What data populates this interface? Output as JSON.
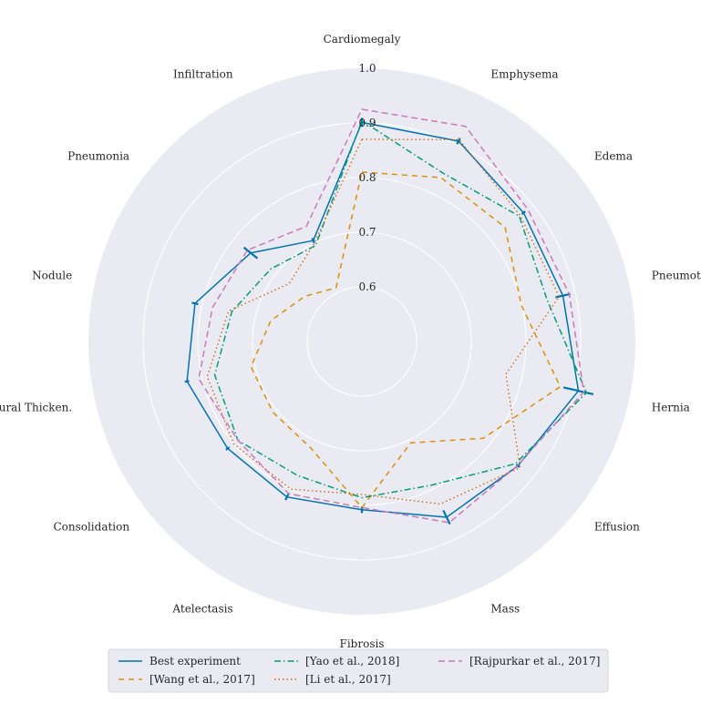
{
  "chart_data": {
    "type": "radar",
    "title": "",
    "categories": [
      "Cardiomegaly",
      "Emphysema",
      "Edema",
      "Pneumothorax",
      "Hernia",
      "Effusion",
      "Mass",
      "Fibrosis",
      "Atelectasis",
      "Consolidation",
      "Pleural Thicken.",
      "Nodule",
      "Pneumonia",
      "Infiltration"
    ],
    "rlim": [
      0.5,
      1.0
    ],
    "ticks": [
      0.6,
      0.7,
      0.8,
      0.9,
      1.0
    ],
    "tick_labels": [
      "0.6",
      "0.7",
      "0.8",
      "0.9",
      "1.0"
    ],
    "grid": true,
    "legend_position": "bottom",
    "series": [
      {
        "name": "Best experiment",
        "color": "#0173b2",
        "dash": "solid",
        "error_bars": true,
        "values": [
          0.901,
          0.907,
          0.878,
          0.877,
          0.906,
          0.865,
          0.857,
          0.808,
          0.816,
          0.814,
          0.828,
          0.813,
          0.76,
          0.705
        ],
        "errors": [
          0.008,
          0.006,
          0.004,
          0.014,
          0.028,
          0.004,
          0.014,
          0.006,
          0.006,
          0.004,
          0.004,
          0.006,
          0.016,
          0.005
        ]
      },
      {
        "name": "[Wang et al., 2017]",
        "color": "#de8f05",
        "dash": "6,5",
        "values": [
          0.81,
          0.833,
          0.835,
          0.799,
          0.872,
          0.784,
          0.706,
          0.804,
          0.716,
          0.708,
          0.708,
          0.671,
          0.633,
          0.609
        ]
      },
      {
        "name": "[Yao et al., 2018]",
        "color": "#029e73",
        "dash": "7,3,1.5,3",
        "values": [
          0.904,
          0.842,
          0.868,
          0.847,
          0.921,
          0.859,
          0.792,
          0.786,
          0.772,
          0.79,
          0.776,
          0.744,
          0.713,
          0.695
        ]
      },
      {
        "name": "[Li et al., 2017]",
        "color": "#d55e00",
        "dash": "1.5,3",
        "values": [
          0.87,
          0.91,
          0.87,
          0.87,
          0.77,
          0.87,
          0.83,
          0.78,
          0.8,
          0.8,
          0.79,
          0.75,
          0.67,
          0.7
        ]
      },
      {
        "name": "[Rajpurkar et al., 2017]",
        "color": "#cc78bc",
        "dash": "7,4",
        "values": [
          0.925,
          0.937,
          0.888,
          0.889,
          0.916,
          0.864,
          0.868,
          0.804,
          0.809,
          0.79,
          0.806,
          0.78,
          0.768,
          0.734
        ]
      }
    ]
  }
}
